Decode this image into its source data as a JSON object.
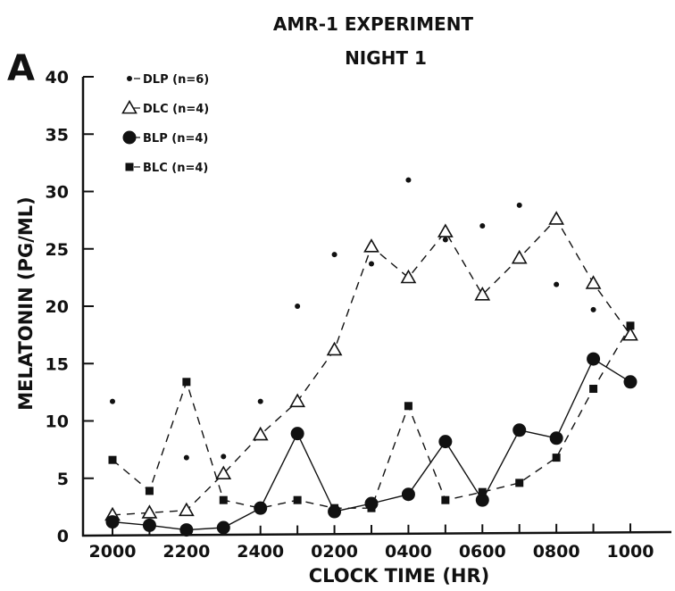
{
  "panel_label": "A",
  "chart_data": {
    "type": "line",
    "title": "AMR-1 EXPERIMENT",
    "subtitle": "NIGHT 1",
    "xlabel": "CLOCK TIME (HR)",
    "ylabel": "MELATONIN (PG/ML)",
    "ylim": [
      0,
      40
    ],
    "y_ticks": [
      0,
      5,
      10,
      15,
      20,
      25,
      30,
      35,
      40
    ],
    "x_tick_labels": [
      "2000",
      "2200",
      "2400",
      "0200",
      "0400",
      "0600",
      "0800",
      "1000"
    ],
    "x_tick_index": [
      0,
      2,
      4,
      6,
      8,
      10,
      12,
      14
    ],
    "x_count": 15,
    "grid": false,
    "legend_position": "top-left",
    "series": [
      {
        "name": "DLP (n=6)",
        "marker": "dot",
        "line": "none",
        "values": [
          11.7,
          3.8,
          6.8,
          6.9,
          11.7,
          20.0,
          24.5,
          23.7,
          31.0,
          25.8,
          27.0,
          28.8,
          21.9,
          19.7,
          17.7
        ]
      },
      {
        "name": "DLC (n=4)",
        "marker": "open-triangle",
        "line": "dashed",
        "values": [
          1.8,
          2.0,
          2.2,
          5.4,
          8.8,
          11.7,
          16.2,
          25.2,
          22.5,
          26.5,
          21.0,
          24.2,
          27.6,
          22.0,
          17.5
        ]
      },
      {
        "name": "BLP (n=4)",
        "marker": "filled-circle",
        "line": "solid",
        "values": [
          1.2,
          0.9,
          0.5,
          0.7,
          2.4,
          8.9,
          2.1,
          2.8,
          3.6,
          8.2,
          3.1,
          9.2,
          8.5,
          15.4,
          13.4
        ]
      },
      {
        "name": "BLC (n=4)",
        "marker": "filled-square",
        "line": "dashed",
        "values": [
          6.6,
          3.9,
          13.4,
          3.1,
          2.4,
          3.1,
          2.4,
          2.4,
          11.3,
          3.1,
          3.8,
          4.6,
          6.8,
          12.8,
          18.3
        ]
      }
    ]
  }
}
